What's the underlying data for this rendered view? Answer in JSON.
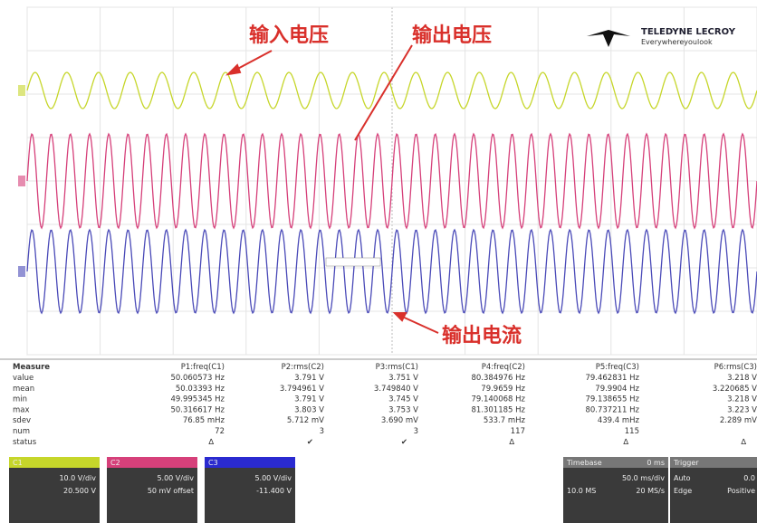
{
  "annotations": {
    "input_voltage": "输入电压",
    "output_voltage": "输出电压",
    "output_current": "输出电流"
  },
  "logo": {
    "brand": "TELEDYNE LECROY",
    "tagline": "Everywhereyoulook"
  },
  "measure": {
    "header": [
      "Measure",
      "P1:freq(C1)",
      "P2:rms(C2)",
      "P3:rms(C1)",
      "P4:freq(C2)",
      "P5:freq(C3)",
      "P6:rms(C3)"
    ],
    "rows": [
      [
        "value",
        "50.060573 Hz",
        "3.791 V",
        "3.751 V",
        "80.384976 Hz",
        "79.462831 Hz",
        "3.218 V"
      ],
      [
        "mean",
        "50.03393 Hz",
        "3.794961 V",
        "3.749840 V",
        "79.9659 Hz",
        "79.9904 Hz",
        "3.220685 V"
      ],
      [
        "min",
        "49.995345 Hz",
        "3.791 V",
        "3.745 V",
        "79.140068 Hz",
        "79.138655 Hz",
        "3.218 V"
      ],
      [
        "max",
        "50.316617 Hz",
        "3.803 V",
        "3.753 V",
        "81.301185 Hz",
        "80.737211 Hz",
        "3.223 V"
      ],
      [
        "sdev",
        "76.85 mHz",
        "5.712 mV",
        "3.690 mV",
        "533.7 mHz",
        "439.4 mHz",
        "2.289 mV"
      ],
      [
        "num",
        "72",
        "3",
        "3",
        "117",
        "115",
        ""
      ],
      [
        "status"
      ]
    ]
  },
  "channels": [
    {
      "name": "C1",
      "scale": "10.0 V/div",
      "offset": "20.500 V"
    },
    {
      "name": "C2",
      "scale": "5.00 V/div",
      "offset": "50 mV offset"
    },
    {
      "name": "C3",
      "scale": "5.00 V/div",
      "offset": "-11.400 V"
    }
  ],
  "timebase": {
    "title": "Timebase",
    "delay": "0 ms",
    "scale": "50.0 ms/div",
    "samples": "10.0 MS",
    "rate": "20 MS/s"
  },
  "trigger": {
    "title": "Trigger",
    "mode": "Auto",
    "type": "Edge",
    "level": "0.0",
    "slope": "Positive"
  }
}
